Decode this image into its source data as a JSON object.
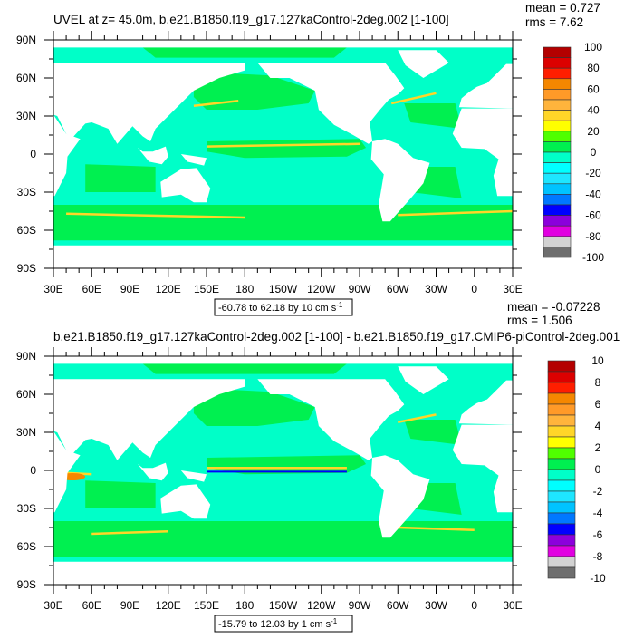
{
  "panels": [
    {
      "title": "UVEL at z=  45.0m, b.e21.B1850.f19_g17.127kaControl-2deg.002 [1-100]",
      "mean": "mean = 0.727",
      "rms": "rms = 7.62",
      "range_label": "-60.78 to 62.18 by 10 cm s",
      "range_unit_exp": "-1",
      "colorbar_labels": [
        "100",
        "80",
        "60",
        "40",
        "20",
        "0",
        "-20",
        "-40",
        "-60",
        "-80",
        "-100"
      ]
    },
    {
      "title": "b.e21.B1850.f19_g17.127kaControl-2deg.002 [1-100] - b.e21.B1850.f19_g17.CMIP6-piControl-2deg.001",
      "mean": "mean = -0.07228",
      "rms": "rms = 1.506",
      "range_label": "-15.79 to 12.03 by 1 cm s",
      "range_unit_exp": "-1",
      "colorbar_labels": [
        "10",
        "8",
        "6",
        "4",
        "2",
        "0",
        "-2",
        "-4",
        "-6",
        "-8",
        "-10"
      ]
    }
  ],
  "lon_ticks": [
    "30E",
    "60E",
    "90E",
    "120E",
    "150E",
    "180",
    "150W",
    "120W",
    "90W",
    "60W",
    "30W",
    "0",
    "30E"
  ],
  "lat_ticks": [
    "90N",
    "60N",
    "30N",
    "0",
    "30S",
    "60S",
    "90S"
  ],
  "colormap": [
    "#b40000",
    "#dc0000",
    "#ff1e00",
    "#f58700",
    "#ff9a28",
    "#ffb43c",
    "#ffd628",
    "#ffff00",
    "#50ff00",
    "#00f050",
    "#00ffc8",
    "#00ffff",
    "#1ee6ff",
    "#00c3ff",
    "#0078ff",
    "#0000ff",
    "#8c00dc",
    "#e100e1",
    "#d2d2d2",
    "#6e6e6e"
  ],
  "colors": {
    "ocean": "#00ffc8",
    "ocean_green": "#00f050",
    "land": "#ffffff"
  }
}
